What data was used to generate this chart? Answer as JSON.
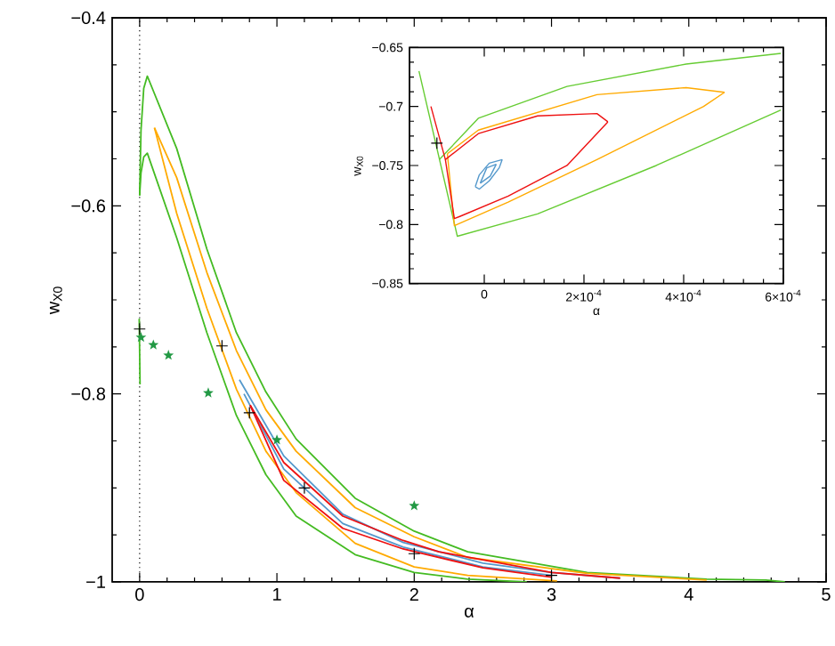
{
  "chart_data": [
    {
      "type": "line",
      "xlabel": "α",
      "ylabel": "w$_{X0}$",
      "xlim": [
        -0.2,
        5
      ],
      "ylim": [
        -1,
        -0.4
      ],
      "xticks": [
        0,
        1,
        2,
        3,
        4,
        5
      ],
      "yticks": [
        {
          "value": -1,
          "label": "−1"
        },
        {
          "value": -0.8,
          "label": "−0.8"
        },
        {
          "value": -0.6,
          "label": "−0.6"
        },
        {
          "value": -0.4,
          "label": "−0.4"
        }
      ],
      "ref_lines": [
        {
          "axis": "x",
          "value": 0,
          "line_style": "dotted",
          "color": "#000000"
        }
      ],
      "series": [
        {
          "color": "#44bb22",
          "x": [
            0,
            0.01,
            0.03,
            0.056,
            0.27,
            0.49,
            0.705,
            0.92,
            1.14,
            1.57,
            2.0,
            2.39,
            3.26,
            4.13,
            4.56,
            4.7
          ],
          "values": [
            -0.589,
            -0.52,
            -0.475,
            -0.462,
            -0.539,
            -0.646,
            -0.735,
            -0.798,
            -0.848,
            -0.911,
            -0.946,
            -0.968,
            -0.99,
            -0.997,
            -0.998,
            -1.0
          ]
        },
        {
          "color": "#44bb22",
          "x": [
            0,
            0.01,
            0.03,
            0.056,
            0.27,
            0.49,
            0.705,
            0.92,
            1.14,
            1.57,
            2.0,
            2.39,
            2.82
          ],
          "values": [
            -0.589,
            -0.565,
            -0.548,
            -0.544,
            -0.634,
            -0.735,
            -0.823,
            -0.886,
            -0.93,
            -0.971,
            -0.99,
            -0.997,
            -1.0
          ]
        },
        {
          "color": "#44bb22",
          "x": [
            -0.003,
            0.003
          ],
          "values": [
            -0.72,
            -0.79
          ]
        },
        {
          "color": "#ffaa00",
          "x": [
            0.108,
            0.27,
            0.49,
            0.705,
            0.92,
            1.14,
            1.57,
            2.0,
            2.39,
            3.26,
            4.13
          ],
          "values": [
            -0.517,
            -0.57,
            -0.671,
            -0.754,
            -0.817,
            -0.861,
            -0.921,
            -0.952,
            -0.974,
            -0.991,
            -0.998
          ]
        },
        {
          "color": "#ffaa00",
          "x": [
            0.108,
            0.27,
            0.49,
            0.705,
            0.92,
            1.14,
            1.57,
            2.0,
            2.39,
            3.04
          ],
          "values": [
            -0.517,
            -0.608,
            -0.709,
            -0.795,
            -0.861,
            -0.905,
            -0.959,
            -0.984,
            -0.993,
            -0.999
          ]
        },
        {
          "color": "#5599cc",
          "x": [
            0.727,
            1.05,
            1.48,
            1.92,
            2.5,
            3.0,
            3.5
          ],
          "values": [
            -0.785,
            -0.866,
            -0.928,
            -0.958,
            -0.98,
            -0.99,
            -0.996
          ]
        },
        {
          "color": "#5599cc",
          "x": [
            0.76,
            1.05,
            1.48,
            1.92,
            2.5,
            3.0
          ],
          "values": [
            -0.8,
            -0.88,
            -0.938,
            -0.963,
            -0.984,
            -0.993
          ]
        },
        {
          "color": "#ee1111",
          "x": [
            0.805,
            1.05,
            1.48,
            1.92,
            2.18,
            3.0,
            3.5
          ],
          "values": [
            -0.812,
            -0.873,
            -0.93,
            -0.956,
            -0.968,
            -0.99,
            -0.996
          ]
        },
        {
          "color": "#ee1111",
          "x": [
            0.805,
            1.05,
            1.48,
            1.92,
            2.5,
            3.0
          ],
          "values": [
            -0.812,
            -0.892,
            -0.943,
            -0.965,
            -0.985,
            -0.995
          ]
        },
        {
          "type": "scatter",
          "marker": "cross",
          "color": "#000000",
          "x": [
            0,
            0.6,
            0.8,
            1.2,
            2.0,
            3.0
          ],
          "values": [
            -0.731,
            -0.749,
            -0.82,
            -0.9,
            -0.97,
            -0.993
          ]
        },
        {
          "type": "scatter",
          "marker": "star",
          "color": "#229944",
          "x": [
            0.01,
            0.1,
            0.21,
            0.5,
            1.0,
            2.0
          ],
          "values": [
            -0.74,
            -0.748,
            -0.759,
            -0.799,
            -0.849,
            -0.919
          ]
        }
      ]
    },
    {
      "type": "line",
      "xlabel": "α",
      "ylabel": "w$_{X0}$",
      "xlim": [
        -0.00015,
        0.0006
      ],
      "ylim": [
        -0.85,
        -0.65
      ],
      "xticks": [
        0,
        {
          "value": 0.0002,
          "label": "2×10$^{-4}$"
        },
        {
          "value": 0.0004,
          "label": "4×10$^{-4}$"
        },
        {
          "value": 0.0006,
          "label": "6×10$^{-4}$"
        }
      ],
      "yticks": [
        {
          "value": -0.85,
          "label": "−0.85"
        },
        {
          "value": -0.8,
          "label": "−0.8"
        },
        {
          "value": -0.75,
          "label": "−0.75"
        },
        {
          "value": -0.7,
          "label": "−0.7"
        },
        {
          "value": -0.65,
          "label": "−0.65"
        }
      ],
      "series": [
        {
          "color": "#66cc33",
          "x": [
            -0.000131,
            -5.4e-05,
            0.000107,
            0.000345,
            0.000595
          ],
          "values": [
            -0.67,
            -0.81,
            -0.791,
            -0.75,
            -0.703
          ]
        },
        {
          "color": "#66cc33",
          "x": [
            -9e-05,
            -1.2e-05,
            0.000166,
            0.000405,
            0.000595
          ],
          "values": [
            -0.745,
            -0.71,
            -0.683,
            -0.664,
            -0.655
          ]
        },
        {
          "color": "#ffaa00",
          "x": [
            -7.4e-05,
            -1.2e-05,
            0.000226,
            0.000405,
            0.000482
          ],
          "values": [
            -0.74,
            -0.72,
            -0.69,
            -0.684,
            -0.688
          ]
        },
        {
          "color": "#ffaa00",
          "x": [
            -7.4e-05,
            -6e-05,
            4.8e-05,
            0.000226,
            0.00044,
            0.000482
          ],
          "values": [
            -0.74,
            -0.801,
            -0.781,
            -0.745,
            -0.7,
            -0.688
          ]
        },
        {
          "color": "#ee1111",
          "x": [
            -0.000107,
            -7.8e-05,
            -1.2e-05,
            0.000107,
            0.000226,
            0.000248
          ],
          "values": [
            -0.7,
            -0.745,
            -0.723,
            -0.708,
            -0.706,
            -0.713
          ]
        },
        {
          "color": "#ee1111",
          "x": [
            -7.8e-05,
            -6e-05,
            -4.8e-05,
            4.8e-05,
            0.000166,
            0.000248
          ],
          "values": [
            -0.745,
            -0.795,
            -0.793,
            -0.776,
            -0.75,
            -0.713
          ]
        },
        {
          "color": "#5599cc",
          "x": [
            -1.8e-05,
            -1e-05,
            1e-05,
            3.6e-05
          ],
          "values": [
            -0.768,
            -0.758,
            -0.748,
            -0.745
          ]
        },
        {
          "color": "#5599cc",
          "x": [
            -1.8e-05,
            -1e-05,
            1e-05,
            3e-05,
            3.6e-05
          ],
          "values": [
            -0.768,
            -0.77,
            -0.763,
            -0.752,
            -0.745
          ]
        },
        {
          "color": "#5599cc",
          "x": [
            -8e-06,
            5e-06,
            2.4e-05
          ],
          "values": [
            -0.765,
            -0.752,
            -0.749
          ]
        },
        {
          "color": "#5599cc",
          "x": [
            -8e-06,
            1.2e-05,
            2.4e-05
          ],
          "values": [
            -0.765,
            -0.759,
            -0.749
          ]
        },
        {
          "type": "scatter",
          "marker": "cross",
          "color": "#000000",
          "x": [
            -9.5e-05
          ],
          "values": [
            -0.731
          ]
        }
      ]
    }
  ]
}
